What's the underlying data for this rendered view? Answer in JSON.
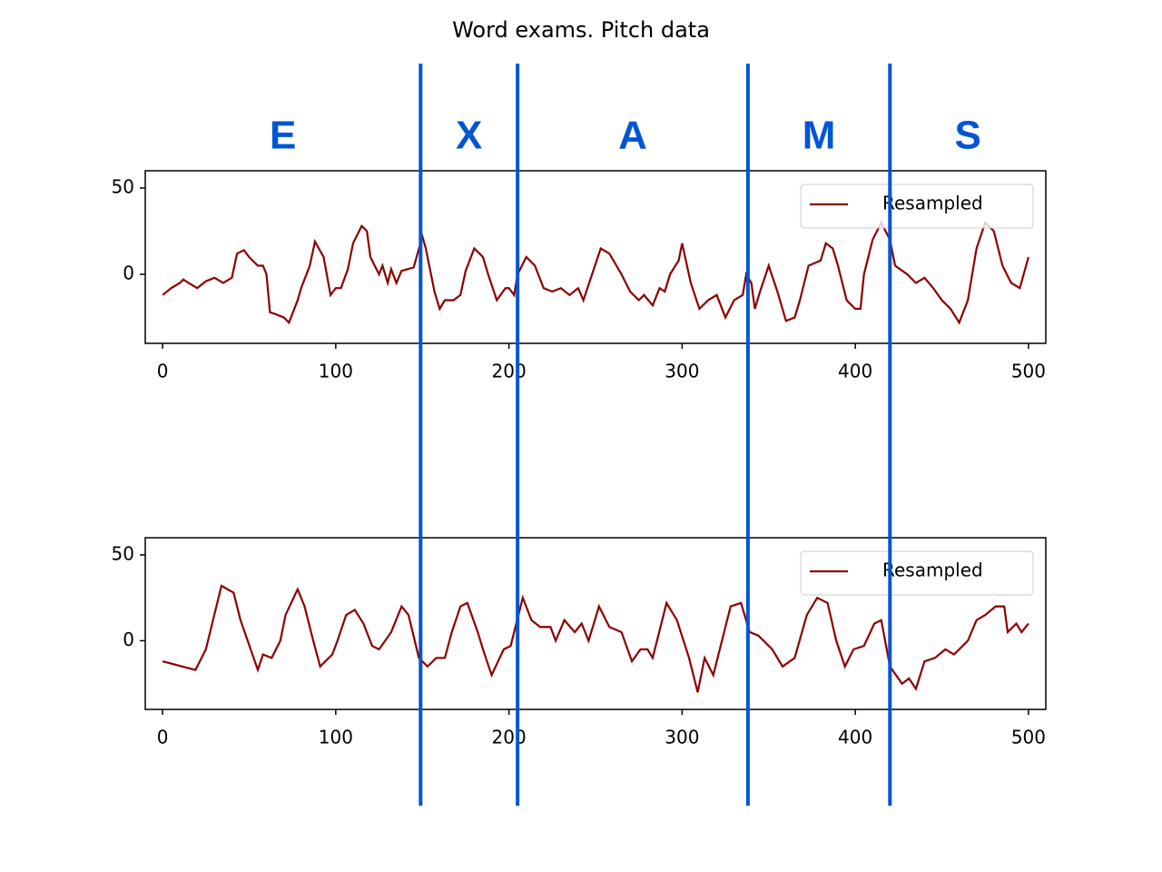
{
  "title": "Word exams. Pitch data",
  "letters": [
    "E",
    "X",
    "A",
    "M",
    "S"
  ],
  "boundaries": [
    149,
    205,
    338,
    420
  ],
  "boundary_color": "#0055d4",
  "chart_data": [
    {
      "type": "line",
      "x": [
        0,
        5,
        10,
        12,
        15,
        20,
        25,
        30,
        35,
        40,
        43,
        47,
        50,
        55,
        58,
        60,
        62,
        65,
        70,
        73,
        78,
        80,
        85,
        88,
        93,
        97,
        100,
        103,
        107,
        110,
        115,
        118,
        120,
        125,
        127,
        130,
        132,
        135,
        138,
        145,
        150,
        152,
        157,
        160,
        163,
        168,
        172,
        175,
        180,
        185,
        188,
        193,
        198,
        200,
        203,
        205,
        210,
        215,
        220,
        225,
        230,
        235,
        240,
        243,
        248,
        253,
        258,
        265,
        270,
        275,
        278,
        283,
        287,
        290,
        293,
        298,
        300,
        305,
        310,
        315,
        320,
        325,
        330,
        335,
        337,
        340,
        342,
        345,
        350,
        355,
        360,
        365,
        368,
        373,
        380,
        383,
        387,
        390,
        395,
        400,
        403,
        405,
        410,
        415,
        420,
        423,
        430,
        435,
        440,
        445,
        450,
        455,
        460,
        465,
        470,
        475,
        480,
        485,
        490,
        495,
        500
      ],
      "series": [
        {
          "name": "Resampled",
          "color": "#8b0000",
          "values": [
            -12,
            -8,
            -5,
            -3,
            -5,
            -8,
            -4,
            -2,
            -5,
            -2,
            12,
            14,
            10,
            5,
            5,
            0,
            -22,
            -23,
            -25,
            -28,
            -15,
            -8,
            5,
            19,
            10,
            -12,
            -8,
            -8,
            3,
            18,
            28,
            25,
            10,
            0,
            5,
            -5,
            3,
            -5,
            2,
            4,
            22,
            15,
            -10,
            -20,
            -15,
            -15,
            -12,
            2,
            15,
            10,
            0,
            -15,
            -8,
            -8,
            -12,
            0,
            10,
            5,
            -8,
            -10,
            -8,
            -12,
            -8,
            -15,
            0,
            15,
            12,
            0,
            -10,
            -15,
            -12,
            -18,
            -8,
            -10,
            0,
            8,
            18,
            -5,
            -20,
            -15,
            -12,
            -25,
            -15,
            -12,
            0,
            -5,
            -20,
            -10,
            5,
            -10,
            -27,
            -25,
            -15,
            5,
            8,
            18,
            15,
            5,
            -15,
            -20,
            -20,
            0,
            20,
            30,
            20,
            5,
            0,
            -5,
            -2,
            -8,
            -15,
            -20,
            -28,
            -15,
            15,
            30,
            25,
            5,
            -5,
            -8,
            10
          ]
        }
      ],
      "xlim": [
        -10,
        510
      ],
      "ylim": [
        -40,
        60
      ],
      "xticks": [
        0,
        100,
        200,
        300,
        400,
        500
      ],
      "yticks": [
        0,
        50
      ],
      "legend": "upper right"
    },
    {
      "type": "line",
      "x": [
        0,
        19,
        25,
        34,
        41,
        45,
        55,
        58,
        63,
        68,
        71,
        78,
        82,
        87,
        91,
        98,
        101,
        106,
        111,
        116,
        121,
        125,
        132,
        138,
        142,
        148,
        153,
        158,
        163,
        167,
        172,
        176,
        182,
        185,
        190,
        197,
        201,
        208,
        213,
        218,
        224,
        227,
        232,
        238,
        242,
        246,
        252,
        258,
        265,
        271,
        276,
        280,
        283,
        291,
        297,
        304,
        309,
        313,
        318,
        323,
        328,
        334,
        339,
        344,
        352,
        358,
        365,
        372,
        378,
        384,
        389,
        394,
        399,
        405,
        411,
        415,
        420,
        427,
        431,
        435,
        440,
        446,
        452,
        457,
        465,
        470,
        475,
        481,
        486,
        488,
        493,
        496,
        500
      ],
      "series": [
        {
          "name": "Resampled",
          "color": "#8b0000",
          "values": [
            -12,
            -17,
            -5,
            32,
            28,
            12,
            -17,
            -8,
            -10,
            0,
            15,
            30,
            20,
            0,
            -15,
            -8,
            0,
            15,
            18,
            10,
            -3,
            -5,
            5,
            20,
            15,
            -10,
            -15,
            -10,
            -10,
            5,
            20,
            22,
            5,
            -5,
            -20,
            -5,
            -3,
            25,
            12,
            8,
            8,
            0,
            12,
            5,
            10,
            0,
            20,
            8,
            5,
            -12,
            -5,
            -5,
            -10,
            22,
            12,
            -10,
            -30,
            -10,
            -20,
            0,
            20,
            22,
            5,
            3,
            -5,
            -15,
            -10,
            15,
            25,
            22,
            0,
            -15,
            -5,
            -3,
            10,
            12,
            -15,
            -25,
            -22,
            -28,
            -12,
            -10,
            -5,
            -8,
            0,
            12,
            15,
            20,
            20,
            5,
            10,
            5,
            10
          ]
        }
      ],
      "xlim": [
        -10,
        510
      ],
      "ylim": [
        -40,
        60
      ],
      "xticks": [
        0,
        100,
        200,
        300,
        400,
        500
      ],
      "yticks": [
        0,
        50
      ],
      "legend": "upper right"
    }
  ]
}
